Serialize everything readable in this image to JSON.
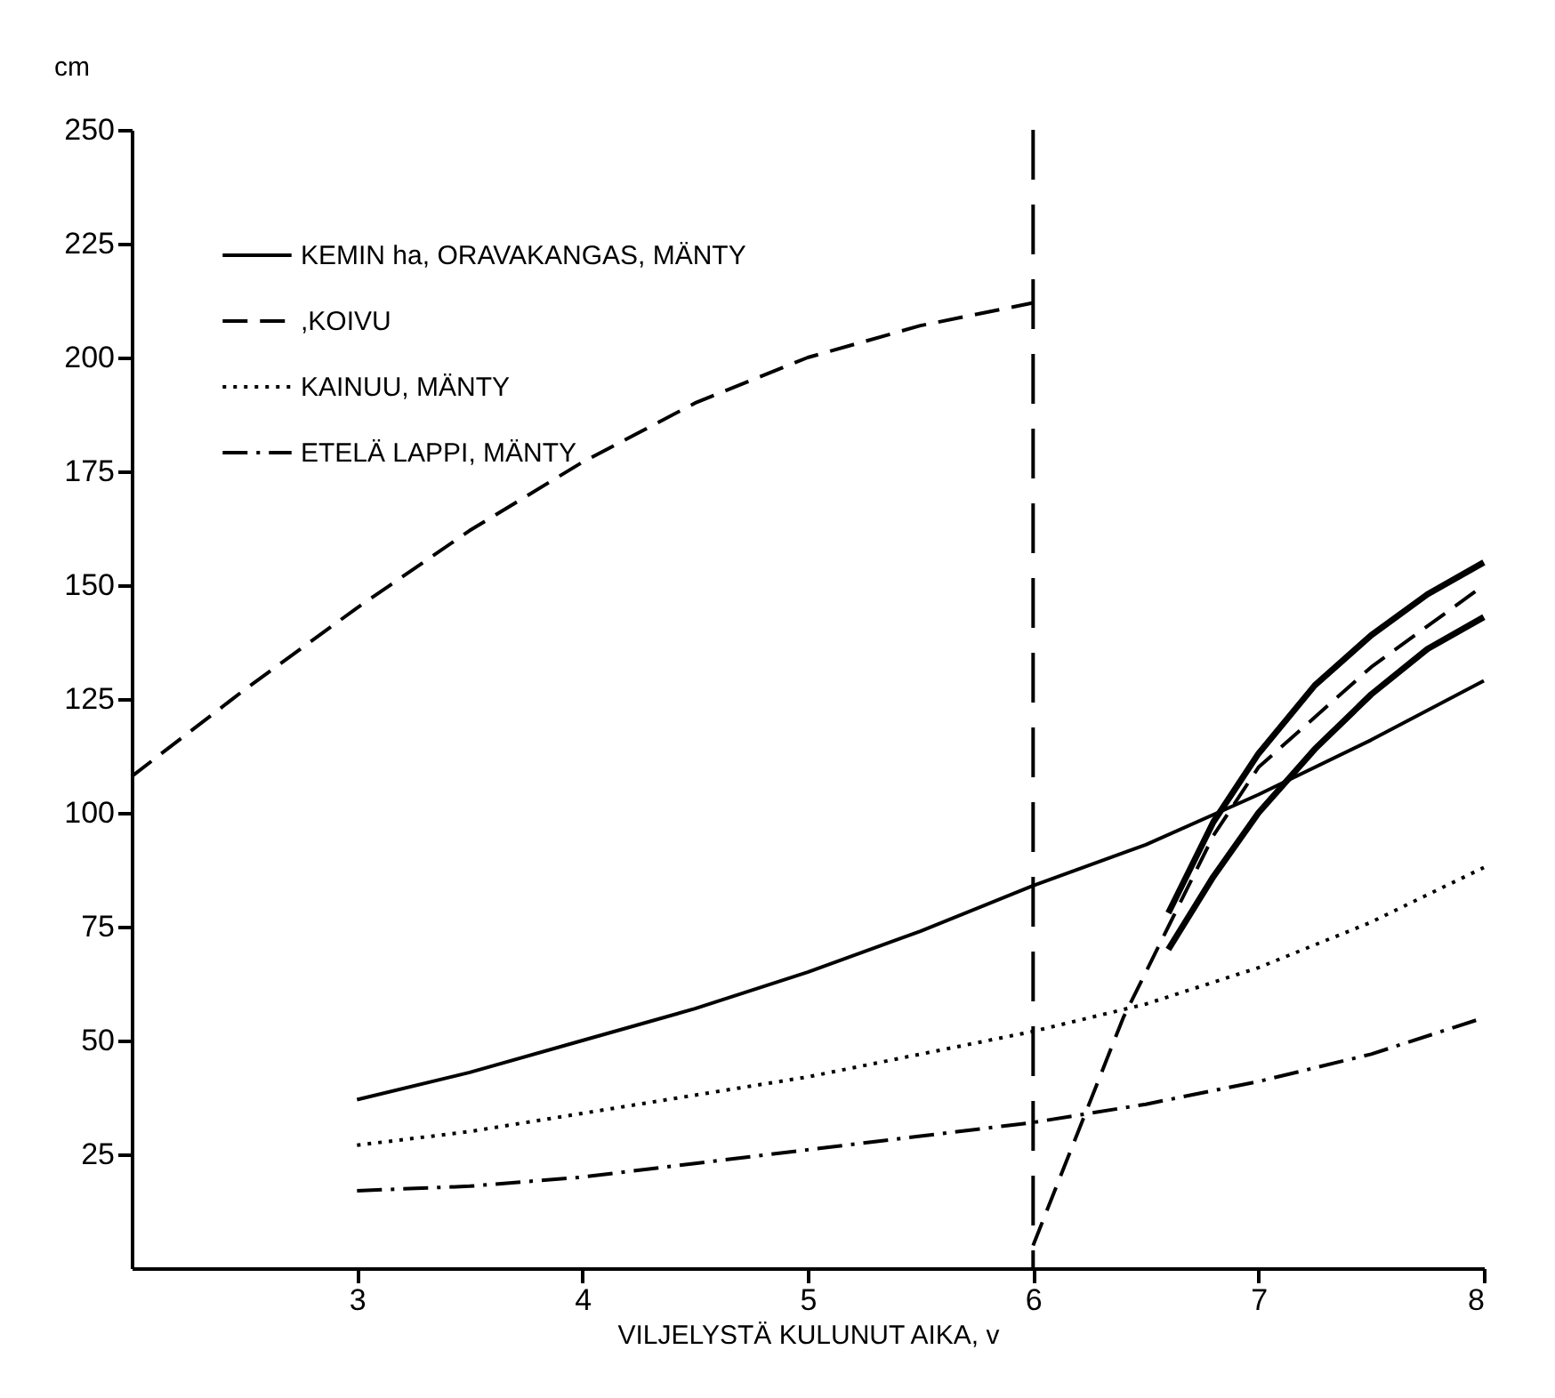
{
  "chart_data": {
    "type": "line",
    "xlabel": "VILJELYSTÄ KULUNUT AIKA, v",
    "ylabel": "cm",
    "xlim": [
      2,
      8
    ],
    "ylim": [
      0,
      250
    ],
    "xticks": [
      3,
      4,
      5,
      6,
      7,
      8
    ],
    "yticks": [
      25,
      50,
      75,
      100,
      125,
      150,
      175,
      200,
      225,
      250
    ],
    "grid": false,
    "legend": "top left",
    "marker": "none",
    "ref_lines": [
      {
        "axis": "x",
        "value": 6,
        "line_style": "dashed",
        "color": "#000000"
      }
    ],
    "series": [
      {
        "name": "KEMIN ha, ORAVAKANGAS, MÄNTY",
        "color": "#000000",
        "line_style": "solid",
        "x": [
          3,
          3.5,
          4,
          4.5,
          5,
          5.5,
          6,
          6.5,
          7,
          7.5,
          8
        ],
        "values": [
          37,
          43,
          50,
          57,
          65,
          74,
          84,
          93,
          104,
          116,
          129
        ]
      },
      {
        "name": ",KOIVU",
        "color": "#000000",
        "line_style": "dashed",
        "x": [
          2,
          2.5,
          3,
          3.5,
          4,
          4.5,
          5,
          5.5,
          6,
          null,
          6,
          6.2,
          6.4,
          6.6,
          6.8,
          7,
          7.5,
          8
        ],
        "values": [
          108,
          127,
          145,
          162,
          177,
          190,
          200,
          207,
          212,
          null,
          5,
          30,
          55,
          75,
          95,
          110,
          132,
          150
        ]
      },
      {
        "name": "KAINUU, MÄNTY",
        "color": "#000000",
        "line_style": "dotted",
        "x": [
          3,
          3.5,
          4,
          4.5,
          5,
          5.5,
          6,
          6.5,
          7,
          7.5,
          8
        ],
        "values": [
          27,
          30,
          34,
          38,
          42,
          47,
          52,
          58,
          66,
          76,
          88
        ]
      },
      {
        "name": "ETELÄ LAPPI, MÄNTY",
        "color": "#000000",
        "line_style": "dashdot",
        "x": [
          3,
          3.5,
          4,
          4.5,
          5,
          5.5,
          6,
          6.5,
          7,
          7.5,
          8
        ],
        "values": [
          17,
          18,
          20,
          23,
          26,
          29,
          32,
          36,
          41,
          47,
          55
        ]
      },
      {
        "color": "#000000",
        "line_style": "solid",
        "x": [
          6.6,
          6.8,
          7,
          7.25,
          7.5,
          7.75,
          8
        ],
        "values": [
          78,
          98,
          113,
          128,
          139,
          148,
          155
        ]
      },
      {
        "color": "#000000",
        "line_style": "solid",
        "x": [
          6.6,
          6.8,
          7,
          7.25,
          7.5,
          7.75,
          8
        ],
        "values": [
          70,
          86,
          100,
          114,
          126,
          136,
          143
        ]
      }
    ]
  }
}
